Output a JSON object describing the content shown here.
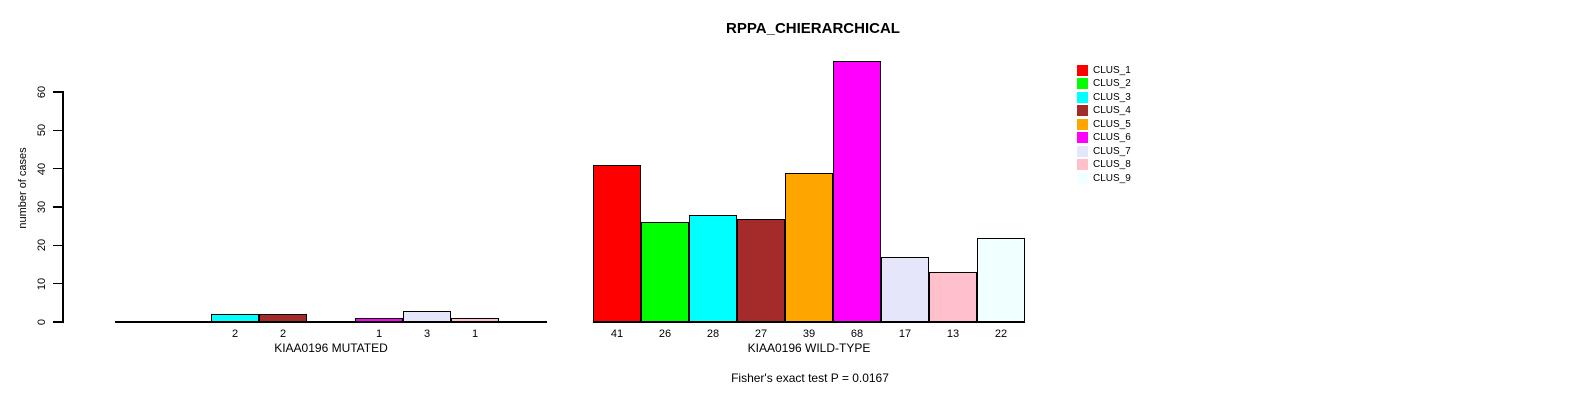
{
  "chart_data": {
    "type": "bar",
    "title": "RPPA_CHIERARCHICAL",
    "ylabel": "number of cases",
    "yticks": [
      0,
      10,
      20,
      30,
      40,
      50,
      60
    ],
    "ylim": [
      0,
      68
    ],
    "grid": false,
    "legend_position": "right",
    "categories": [
      "CLUS_1",
      "CLUS_2",
      "CLUS_3",
      "CLUS_4",
      "CLUS_5",
      "CLUS_6",
      "CLUS_7",
      "CLUS_8",
      "CLUS_9"
    ],
    "legend": [
      {
        "label": "CLUS_1",
        "color": "#FF0000"
      },
      {
        "label": "CLUS_2",
        "color": "#00FF00"
      },
      {
        "label": "CLUS_3",
        "color": "#00FFFF"
      },
      {
        "label": "CLUS_4",
        "color": "#A52A2A"
      },
      {
        "label": "CLUS_5",
        "color": "#FFA500"
      },
      {
        "label": "CLUS_6",
        "color": "#FF00FF"
      },
      {
        "label": "CLUS_7",
        "color": "#E6E6FA"
      },
      {
        "label": "CLUS_8",
        "color": "#FFC0CB"
      },
      {
        "label": "CLUS_9",
        "color": "#F0FFFF"
      }
    ],
    "panels": [
      {
        "xlabel": "KIAA0196 MUTATED",
        "values": [
          0,
          0,
          2,
          2,
          0,
          1,
          3,
          1,
          0
        ],
        "hide_zero_labels": true
      },
      {
        "xlabel": "KIAA0196 WILD-TYPE",
        "values": [
          41,
          26,
          28,
          27,
          39,
          68,
          17,
          13,
          22
        ],
        "hide_zero_labels": true
      }
    ],
    "annotation": "Fisher's exact test P = 0.0167",
    "axis_color": "#000000",
    "bar_border_color": "#000000"
  }
}
